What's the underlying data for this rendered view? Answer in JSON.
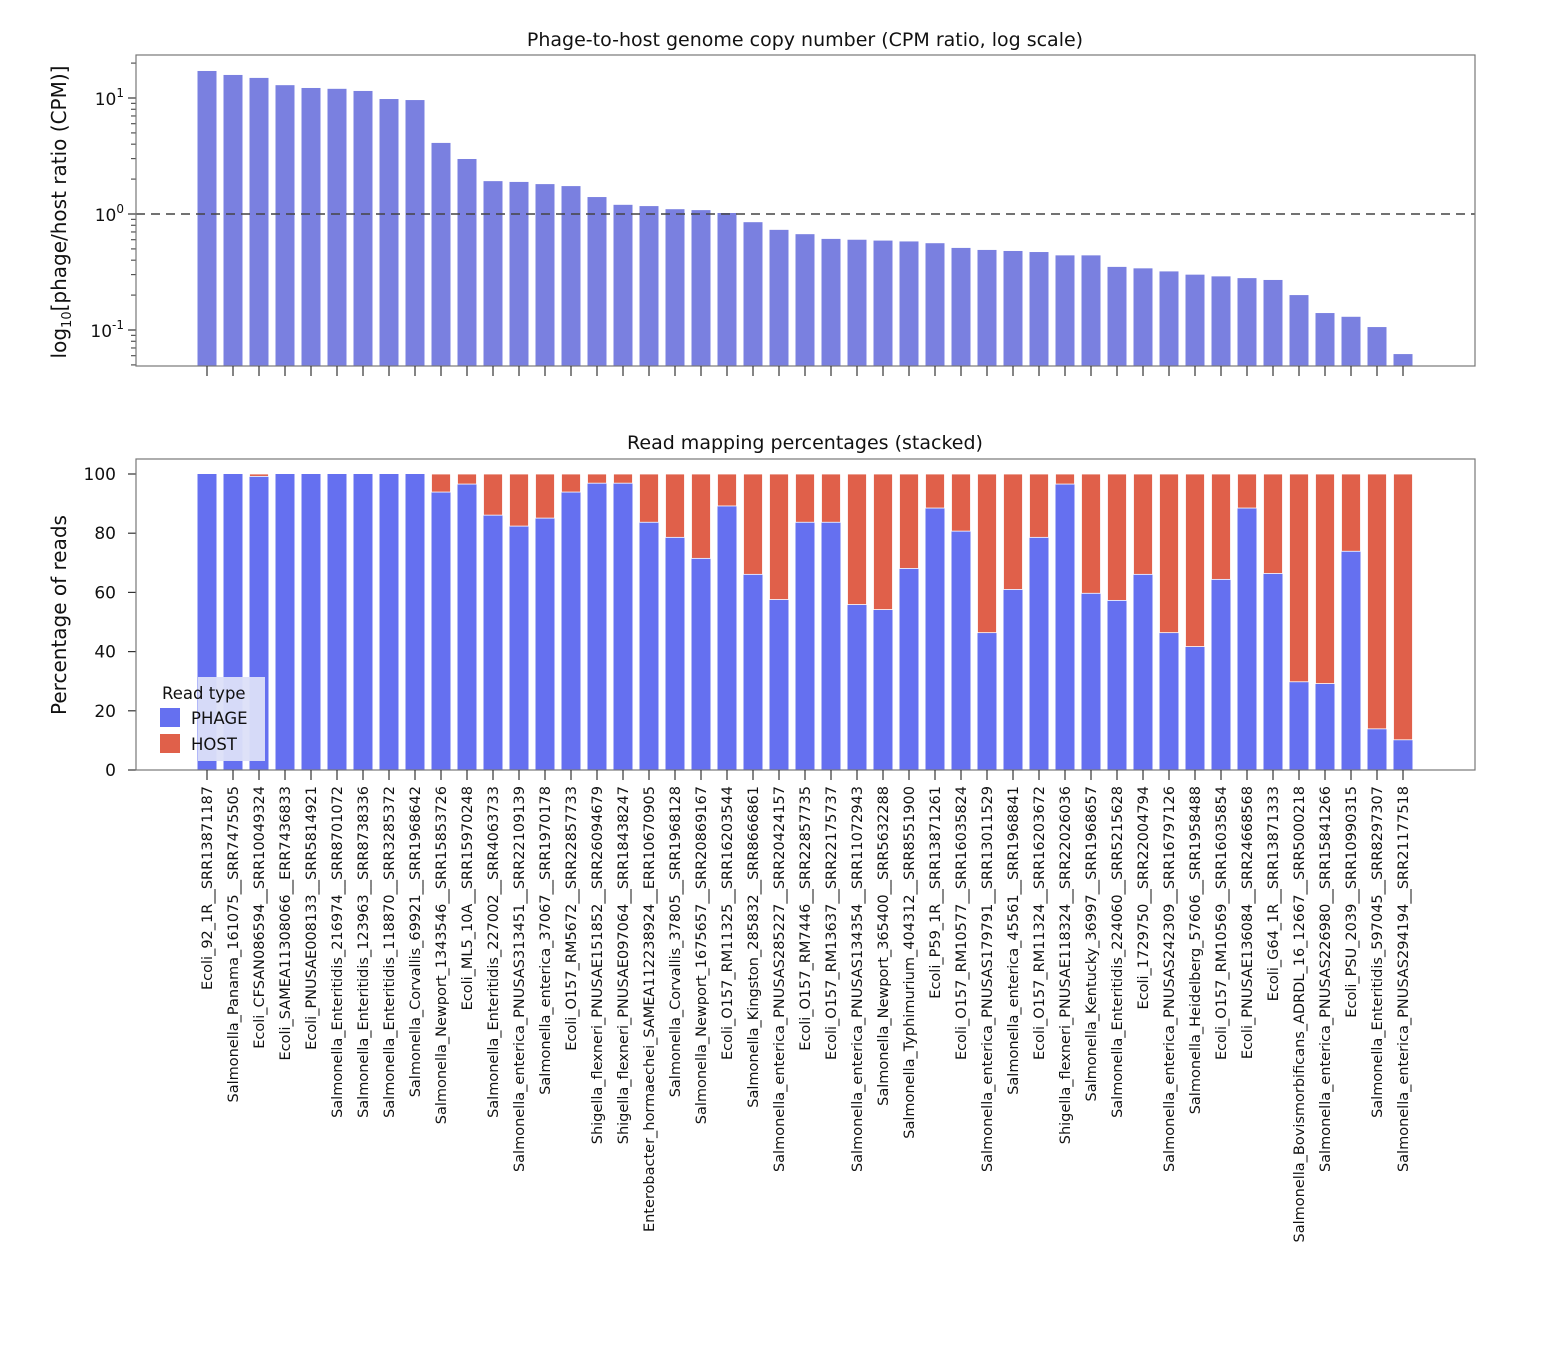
{
  "chart_data": [
    {
      "type": "bar",
      "title": "Phage-to-host genome copy number (CPM ratio, log scale)",
      "ylabel_parts": [
        "log",
        "10",
        "[phage/host ratio (CPM)]"
      ],
      "yscale": "log",
      "ylim": [
        0.05,
        23
      ],
      "yticks": [
        0.1,
        1,
        10
      ],
      "ytick_labels": [
        [
          "10",
          "-1"
        ],
        [
          "10",
          "0"
        ],
        [
          "10",
          "1"
        ]
      ],
      "reference_line": {
        "y": 1,
        "style": "dashed"
      },
      "bar_color": "#7a80e0",
      "grid": false,
      "values": [
        17.1,
        15.8,
        14.9,
        12.9,
        12.2,
        12.0,
        11.5,
        9.8,
        9.6,
        4.1,
        2.98,
        1.92,
        1.89,
        1.81,
        1.74,
        1.4,
        1.2,
        1.17,
        1.1,
        1.08,
        1.02,
        0.85,
        0.73,
        0.67,
        0.61,
        0.6,
        0.59,
        0.58,
        0.56,
        0.51,
        0.49,
        0.48,
        0.47,
        0.44,
        0.44,
        0.35,
        0.34,
        0.32,
        0.3,
        0.29,
        0.28,
        0.27,
        0.2,
        0.14,
        0.13,
        0.106,
        0.062
      ]
    },
    {
      "type": "bar",
      "stacked": true,
      "title": "Read mapping percentages (stacked)",
      "ylabel": "Percentage of reads",
      "ylim": [
        0,
        100
      ],
      "yticks": [
        0,
        20,
        40,
        60,
        80,
        100
      ],
      "grid": false,
      "legend": {
        "title": "Read type",
        "placement": "bottom-left"
      },
      "series": [
        {
          "name": "PHAGE",
          "color": "#6570f0",
          "values": [
            100,
            100,
            99.2,
            100,
            100,
            100,
            100,
            100,
            100,
            93.9,
            96.6,
            86.1,
            82.4,
            85.1,
            93.9,
            96.9,
            96.9,
            83.7,
            78.6,
            71.5,
            89.2,
            66.1,
            57.6,
            83.7,
            83.7,
            55.9,
            54.2,
            68.1,
            88.5,
            80.7,
            46.4,
            61.0,
            78.6,
            96.6,
            59.7,
            57.3,
            66.1,
            46.4,
            41.7,
            64.4,
            88.5,
            66.4,
            29.8,
            29.2,
            73.9,
            13.9,
            10.2
          ]
        },
        {
          "name": "HOST",
          "color": "#e0604a",
          "values": [
            0,
            0,
            0.8,
            0,
            0,
            0,
            0,
            0,
            0,
            6.1,
            3.4,
            13.9,
            17.6,
            14.9,
            6.1,
            3.1,
            3.1,
            16.3,
            21.4,
            28.5,
            10.8,
            33.9,
            42.4,
            16.3,
            16.3,
            44.1,
            45.8,
            31.9,
            11.5,
            19.3,
            53.6,
            39.0,
            21.4,
            3.4,
            40.3,
            42.7,
            33.9,
            53.6,
            58.3,
            35.6,
            11.5,
            33.6,
            70.2,
            70.8,
            26.1,
            86.1,
            89.8
          ]
        }
      ]
    }
  ],
  "categories": [
    "Ecoli_92_1R__SRR13871187",
    "Salmonella_Panama_161075__SRR7475505",
    "Ecoli_CFSAN086594__SRR10049324",
    "Ecoli_SAMEA11308066__ERR7436833",
    "Ecoli_PNUSAE008133__SRR5814921",
    "Salmonella_Enteritidis_216974__SRR8701072",
    "Salmonella_Enteritidis_123963__SRR8738336",
    "Salmonella_Enteritidis_118870__SRR3285372",
    "Salmonella_Corvallis_69921__SRR1968642",
    "Salmonella_Newport_1343546__SRR15853726",
    "Ecoli_ML5_10A__SRR15970248",
    "Salmonella_Enteritidis_227002__SRR4063733",
    "Salmonella_enterica_PNUSAS313451__SRR22109139",
    "Salmonella_enterica_37067__SRR1970178",
    "Ecoli_O157_RM5672__SRR22857733",
    "Shigella_flexneri_PNUSAE151852__SRR26094679",
    "Shigella_flexneri_PNUSAE097064__SRR18438247",
    "Enterobacter_hormaechei_SAMEA112238924__ERR10670905",
    "Salmonella_Corvallis_37805__SRR1968128",
    "Salmonella_Newport_1675657__SRR20869167",
    "Ecoli_O157_RM11325__SRR16203544",
    "Salmonella_Kingston_285832__SRR8666861",
    "Salmonella_enterica_PNUSAS285227__SRR20424157",
    "Ecoli_O157_RM7446__SRR22857735",
    "Ecoli_O157_RM13637__SRR22175737",
    "Salmonella_enterica_PNUSAS134354__SRR11072943",
    "Salmonella_Newport_365400__SRR5632288",
    "Salmonella_Typhimurium_404312__SRR8551900",
    "Ecoli_P59_1R__SRR13871261",
    "Ecoli_O157_RM10577__SRR16035824",
    "Salmonella_enterica_PNUSAS179791__SRR13011529",
    "Salmonella_enterica_45561__SRR1968841",
    "Ecoli_O157_RM11324__SRR16203672",
    "Shigella_flexneri_PNUSAE118324__SRR22026036",
    "Salmonella_Kentucky_36997__SRR1968657",
    "Salmonella_Enteritidis_224060__SRR5215628",
    "Ecoli_1729750__SRR22004794",
    "Salmonella_enterica_PNUSAS242309__SRR16797126",
    "Salmonella_Heidelberg_57606__SRR1958488",
    "Ecoli_O157_RM10569__SRR16035854",
    "Ecoli_PNUSAE136084__SRR24668568",
    "Ecoli_G64_1R__SRR13871333",
    "Salmonella_Bovismorbificans_ADRDL_16_12667__SRR5000218",
    "Salmonella_enterica_PNUSAS226980__SRR15841266",
    "Ecoli_PSU_2039__SRR10990315",
    "Salmonella_Enteritidis_597045__SRR8297307",
    "Salmonella_enterica_PNUSAS294194__SRR21177518"
  ]
}
